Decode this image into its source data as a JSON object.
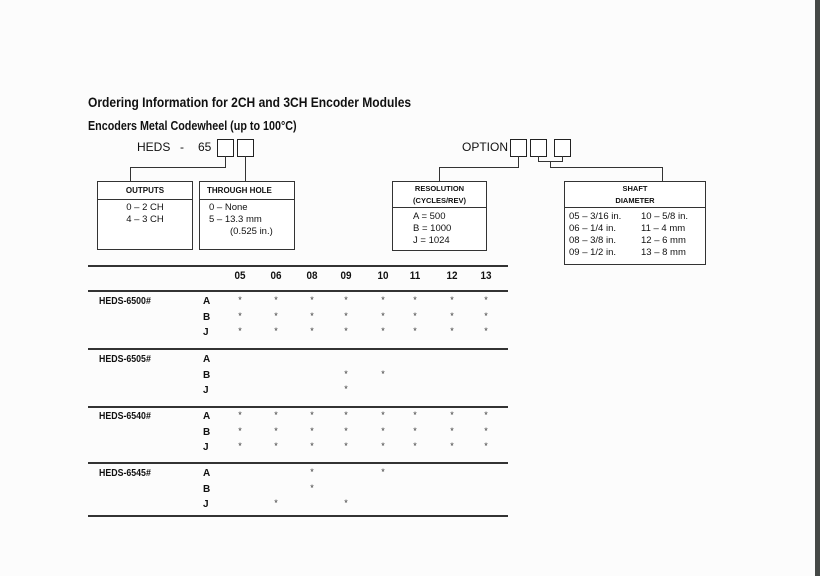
{
  "title": "Ordering Information for 2CH and 3CH Encoder Modules",
  "subtitle": "Encoders Metal Codewheel (up to 100°C)",
  "part_code": {
    "prefix": "HEDS",
    "dash": "-",
    "digits": "65"
  },
  "option_label": "OPTION",
  "outputs": {
    "header": "OUTPUTS",
    "lines": [
      "0 – 2 CH",
      "4 – 3 CH"
    ]
  },
  "through_hole": {
    "header": "THROUGH HOLE",
    "lines": [
      "0 – None",
      "5 – 13.3 mm",
      "(0.525 in.)"
    ]
  },
  "resolution": {
    "header": [
      "RESOLUTION",
      "(CYCLES/REV)"
    ],
    "lines": [
      "A = 500",
      "B = 1000",
      "J = 1024"
    ]
  },
  "shaft": {
    "header": [
      "SHAFT",
      "DIAMETER"
    ],
    "lines": [
      "05 – 3/16 in.",
      "10 – 5/8 in.",
      "06 – 1/4 in.",
      "11 – 4 mm",
      "08 – 3/8 in.",
      "12 – 6 mm",
      "09 – 1/2 in.",
      "13 – 8 mm"
    ]
  },
  "table": {
    "columns": [
      "05",
      "06",
      "08",
      "09",
      "10",
      "11",
      "12",
      "13"
    ],
    "mark": "*",
    "groups": [
      {
        "model": "HEDS-6500#",
        "rows": [
          {
            "res": "A",
            "cols": [
              "05",
              "06",
              "08",
              "09",
              "10",
              "11",
              "12",
              "13"
            ]
          },
          {
            "res": "B",
            "cols": [
              "05",
              "06",
              "08",
              "09",
              "10",
              "11",
              "12",
              "13"
            ]
          },
          {
            "res": "J",
            "cols": [
              "05",
              "06",
              "08",
              "09",
              "10",
              "11",
              "12",
              "13"
            ]
          }
        ]
      },
      {
        "model": "HEDS-6505#",
        "rows": [
          {
            "res": "A",
            "cols": []
          },
          {
            "res": "B",
            "cols": [
              "09",
              "10"
            ]
          },
          {
            "res": "J",
            "cols": [
              "09"
            ]
          }
        ]
      },
      {
        "model": "HEDS-6540#",
        "rows": [
          {
            "res": "A",
            "cols": [
              "05",
              "06",
              "08",
              "09",
              "10",
              "11",
              "12",
              "13"
            ]
          },
          {
            "res": "B",
            "cols": [
              "05",
              "06",
              "08",
              "09",
              "10",
              "11",
              "12",
              "13"
            ]
          },
          {
            "res": "J",
            "cols": [
              "05",
              "06",
              "08",
              "09",
              "10",
              "11",
              "12",
              "13"
            ]
          }
        ]
      },
      {
        "model": "HEDS-6545#",
        "rows": [
          {
            "res": "A",
            "cols": [
              "08",
              "10"
            ]
          },
          {
            "res": "B",
            "cols": [
              "08"
            ]
          },
          {
            "res": "J",
            "cols": [
              "06",
              "09"
            ]
          }
        ]
      }
    ]
  }
}
